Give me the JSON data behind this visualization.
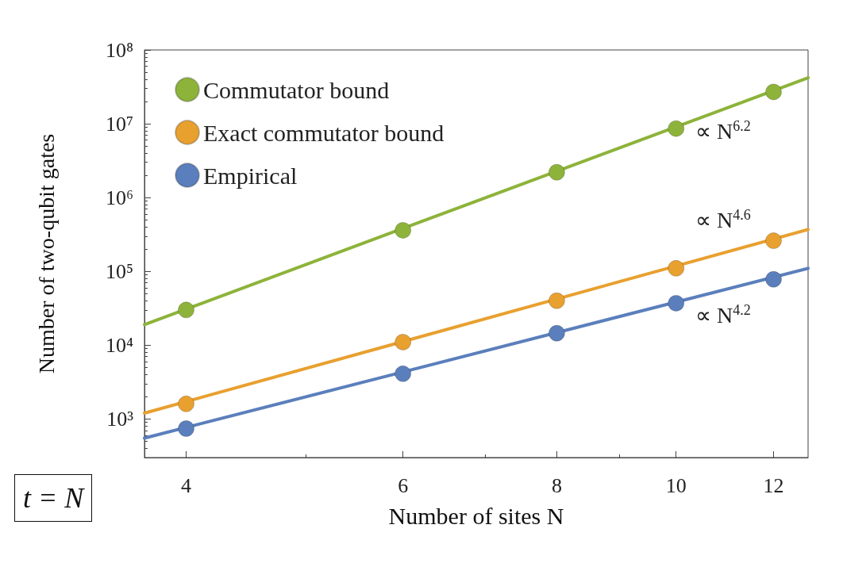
{
  "chart_data": {
    "type": "scatter",
    "xlabel": "Number of sites N",
    "ylabel": "Number of two-qubit gates",
    "log": "xy",
    "legend": "top left",
    "marker": "circle",
    "xlim": [
      3.7,
      12.8
    ],
    "xticks": [
      4,
      6,
      8,
      10,
      12
    ],
    "ylim": [
      300,
      100000000
    ],
    "yticks": [
      {
        "value": 1000,
        "label": "10³"
      },
      {
        "value": 10000,
        "label": "10⁴"
      },
      {
        "value": 100000,
        "label": "10⁵"
      },
      {
        "value": 1000000,
        "label": "10⁶"
      },
      {
        "value": 10000000,
        "label": "10⁷"
      },
      {
        "value": 100000000,
        "label": "10⁸"
      }
    ],
    "series": [
      {
        "type": "line",
        "color": "#8db33a",
        "line_style": "solid",
        "marker": "none",
        "x": [
          3.7,
          12.8
        ],
        "values": [
          19000,
          42000000
        ]
      },
      {
        "type": "line",
        "color": "#e8a02f",
        "line_style": "solid",
        "marker": "none",
        "x": [
          3.7,
          12.8
        ],
        "values": [
          1200,
          370000
        ]
      },
      {
        "type": "line",
        "color": "#5b7fbc",
        "line_style": "solid",
        "marker": "none",
        "x": [
          3.7,
          12.8
        ],
        "values": [
          550,
          110000
        ]
      },
      {
        "name": "Commutator bound",
        "color": "#8db33a",
        "x": [
          4,
          6,
          8,
          10,
          12
        ],
        "values": [
          30000,
          360000,
          2200000,
          8600000,
          27000000
        ]
      },
      {
        "name": "Exact commutator bound",
        "color": "#e8a02f",
        "x": [
          4,
          6,
          8,
          10,
          12
        ],
        "values": [
          1600,
          11000,
          40000,
          110000,
          260000
        ]
      },
      {
        "name": "Empirical",
        "color": "#5b7fbc",
        "x": [
          4,
          6,
          8,
          10,
          12
        ],
        "values": [
          740,
          4100,
          14500,
          37000,
          78000
        ]
      }
    ],
    "annotations": [
      "∝ N$^{6.2}$",
      "∝ N$^{4.6}$",
      "∝ N$^{4.2}$",
      "t = N"
    ]
  }
}
